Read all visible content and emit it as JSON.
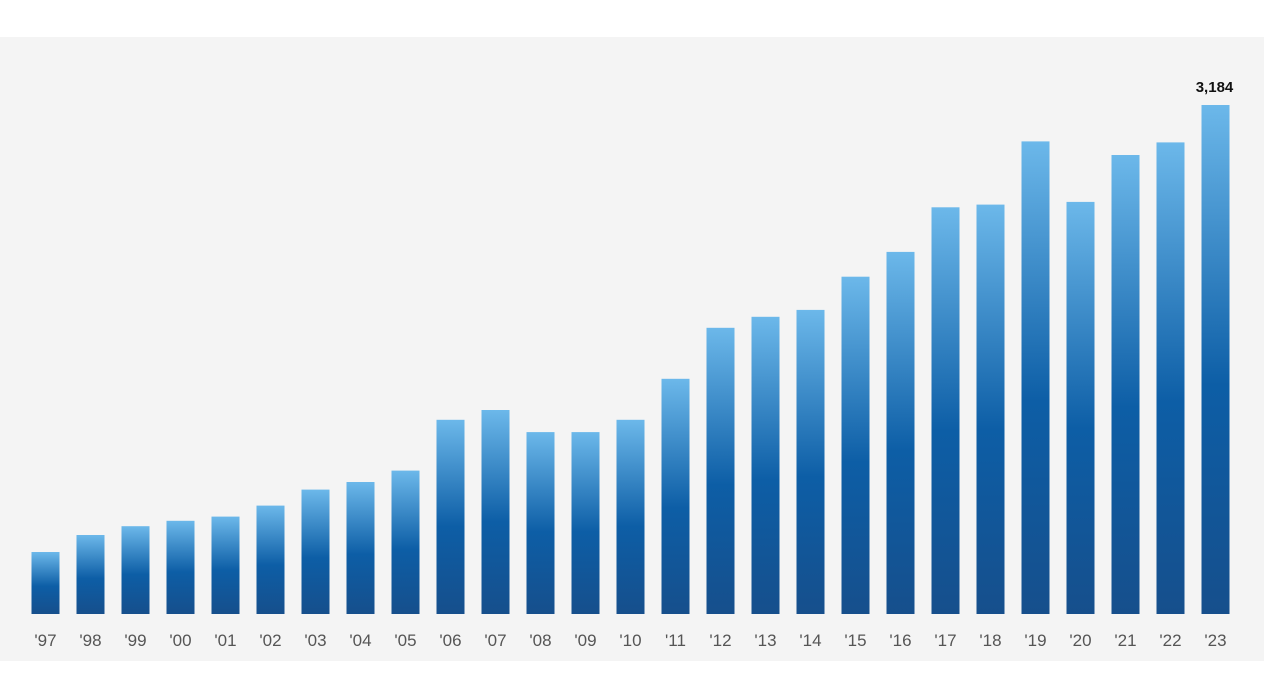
{
  "chart_data": {
    "type": "bar",
    "categories": [
      "'97",
      "'98",
      "'99",
      "'00",
      "'01",
      "'02",
      "'03",
      "'04",
      "'05",
      "'06",
      "'07",
      "'08",
      "'09",
      "'10",
      "'11",
      "'12",
      "'13",
      "'14",
      "'15",
      "'16",
      "'17",
      "'18",
      "'19",
      "'20",
      "'21",
      "'22",
      "'23"
    ],
    "values": [
      388,
      494,
      549,
      583,
      609,
      678,
      778,
      826,
      897,
      1215,
      1276,
      1138,
      1138,
      1215,
      1471,
      1790,
      1859,
      1902,
      2110,
      2265,
      2544,
      2561,
      2956,
      2578,
      2871,
      2950,
      3184
    ],
    "data_labels": [
      {
        "category": "'23",
        "text": "3,184"
      }
    ],
    "title": "",
    "xlabel": "",
    "ylabel": "",
    "ylim": [
      0,
      3600
    ],
    "grid": false,
    "legend": "none",
    "colors": {
      "bar_top": "#6cb8ea",
      "bar_mid": "#0d5ea6",
      "bar_bottom": "#164f8c",
      "panel_background": "#f4f4f4",
      "tick_text": "#555555",
      "value_text": "#111111"
    }
  }
}
